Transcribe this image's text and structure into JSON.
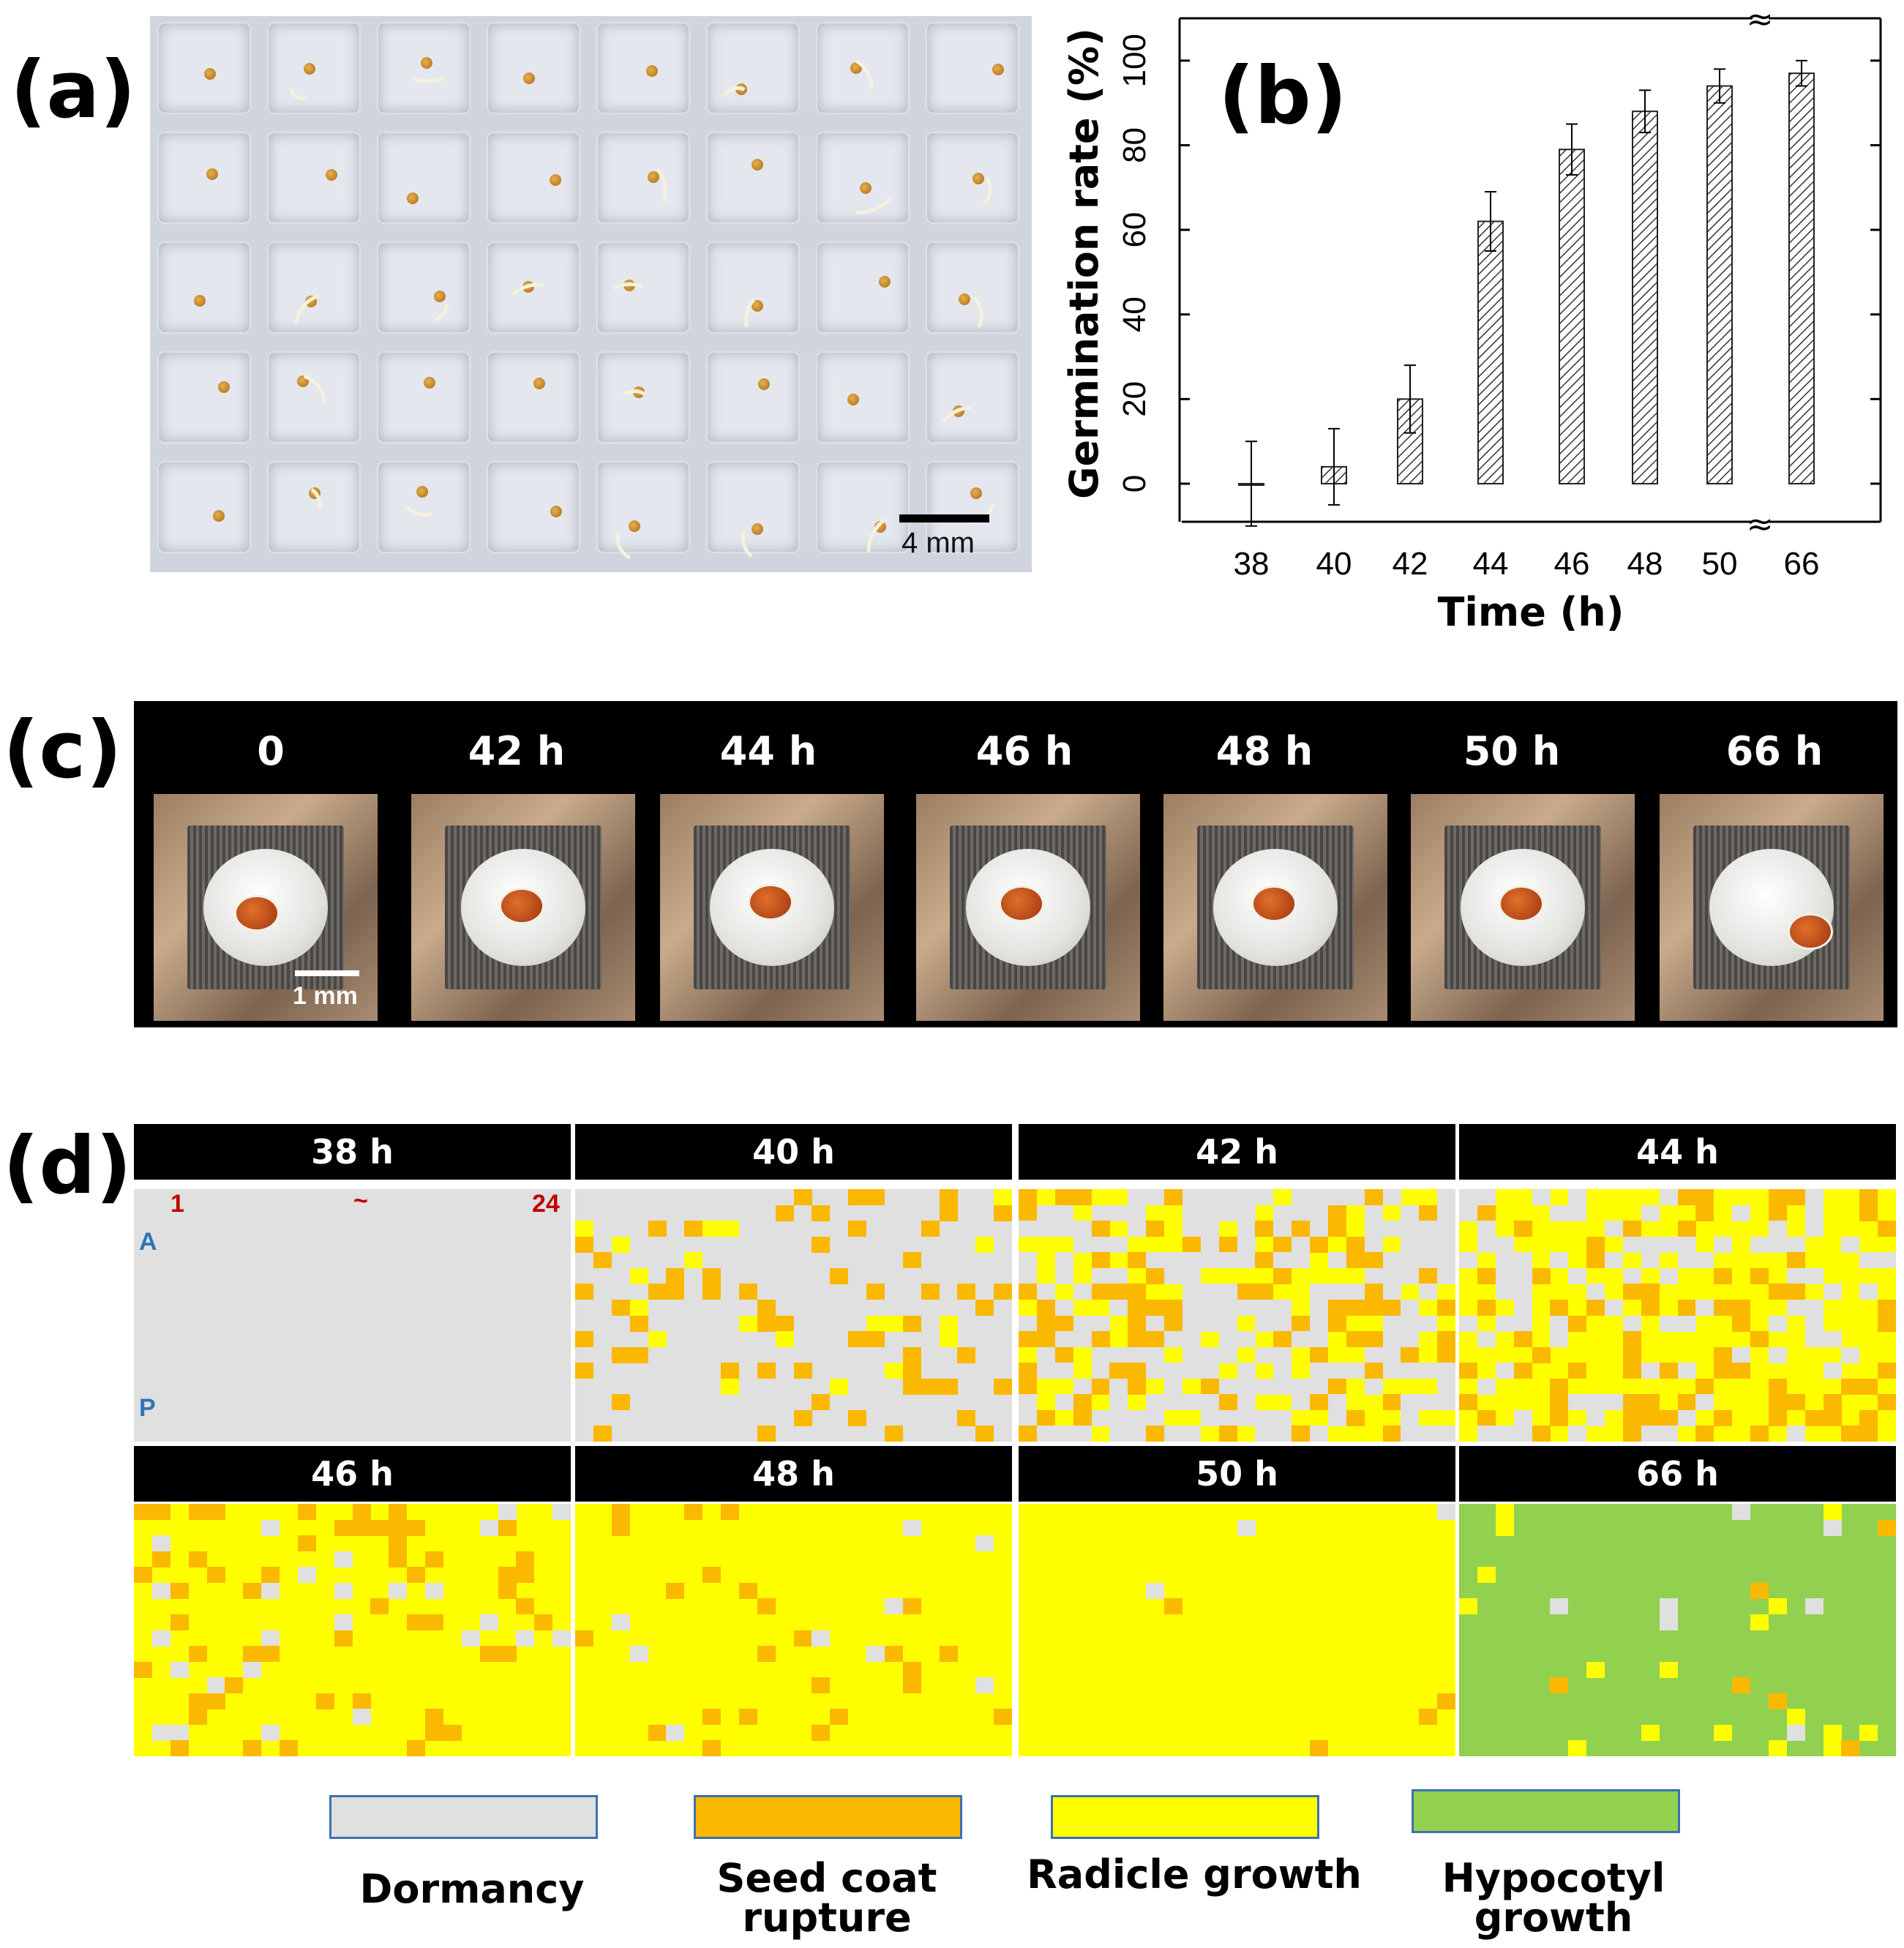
{
  "panel_labels": {
    "a": "(a)",
    "b": "(b)",
    "c": "(c)",
    "d": "(d)"
  },
  "panel_a": {
    "scale_bar": "4 mm"
  },
  "chart_data": {
    "type": "bar",
    "categories": [
      "38",
      "40",
      "42",
      "44",
      "46",
      "48",
      "50",
      "66"
    ],
    "values": [
      0,
      4,
      20,
      62,
      79,
      88,
      94,
      97
    ],
    "error": [
      10,
      9,
      8,
      7,
      6,
      5,
      4,
      3
    ],
    "title": "",
    "xlabel": "Time (h)",
    "ylabel": "Germination rate (%)",
    "yticks": [
      "0",
      "20",
      "40",
      "60",
      "80",
      "100"
    ],
    "ylim": [
      -9,
      110
    ],
    "axis_break": "between 50 and 66",
    "bar_style": "hatched"
  },
  "panel_c": {
    "labels": [
      "0",
      "42 h",
      "44 h",
      "46 h",
      "48 h",
      "50 h",
      "66 h"
    ],
    "scale_bar": "1 mm"
  },
  "panel_d": {
    "headers": [
      "38 h",
      "40 h",
      "42 h",
      "44 h",
      "46 h",
      "48 h",
      "50 h",
      "66 h"
    ],
    "col_start": "1",
    "col_sep": "~",
    "col_end": "24",
    "row_start": "A",
    "row_end": "P",
    "state_colors": [
      "#e0e0e0",
      "#fbb800",
      "#ffff00",
      "#92d050"
    ],
    "legend": [
      "Dormancy",
      "Seed coat rupture",
      "Radicle growth",
      "Hypocotyl growth"
    ]
  }
}
